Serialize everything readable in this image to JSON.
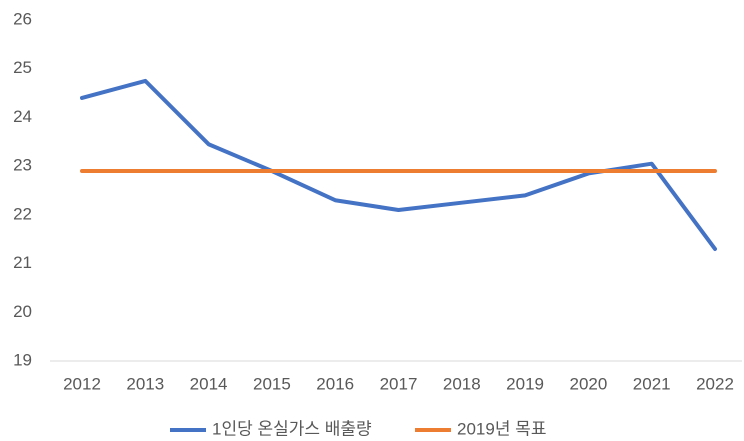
{
  "chart_data": {
    "type": "line",
    "categories": [
      "2012",
      "2013",
      "2014",
      "2015",
      "2016",
      "2017",
      "2018",
      "2019",
      "2020",
      "2021",
      "2022"
    ],
    "series": [
      {
        "name": "1인당 온실가스 배출량",
        "color": "#4472c4",
        "values": [
          24.4,
          24.75,
          23.45,
          22.9,
          22.3,
          22.1,
          22.25,
          22.4,
          22.85,
          23.05,
          21.3
        ]
      },
      {
        "name": "2019년 목표",
        "color": "#ed7d31",
        "values": [
          22.9,
          22.9,
          22.9,
          22.9,
          22.9,
          22.9,
          22.9,
          22.9,
          22.9,
          22.9,
          22.9
        ]
      }
    ],
    "ylim": [
      19,
      26
    ],
    "yticks": [
      19,
      20,
      21,
      22,
      23,
      24,
      25,
      26
    ],
    "grid": false,
    "legend": "bottom"
  }
}
